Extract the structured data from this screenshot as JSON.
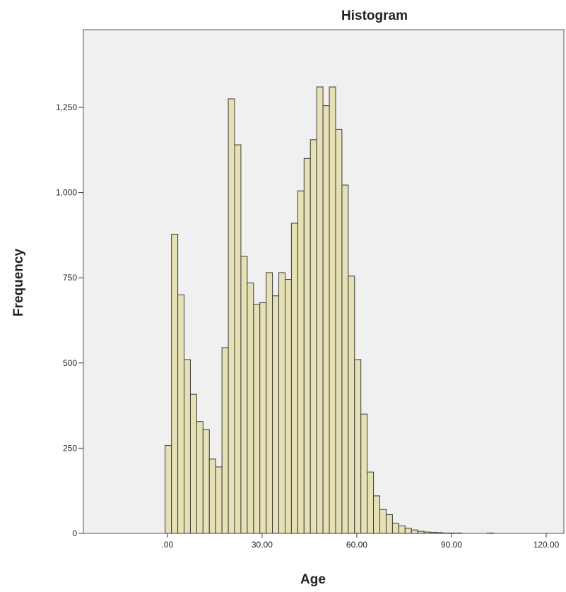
{
  "chart_data": {
    "type": "histogram",
    "title": "Histogram",
    "x_label": "Age",
    "y_label": "Frequency",
    "bins": [
      -0.7,
      1.3,
      3.3,
      5.3,
      7.3,
      9.3,
      11.3,
      13.3,
      15.3,
      17.3,
      19.3,
      21.3,
      23.3,
      25.3,
      27.3,
      29.3,
      31.3,
      33.3,
      35.3,
      37.3,
      39.3,
      41.3,
      43.3,
      45.3,
      47.3,
      49.3,
      51.3,
      53.3,
      55.3,
      57.3,
      59.3,
      61.3,
      63.3,
      65.3,
      67.3,
      69.3,
      71.3,
      73.3,
      75.3,
      77.3,
      79.3,
      81.3,
      83.3,
      85.3,
      87.3,
      89.3,
      91.3,
      93.3,
      95.3,
      97.3,
      99.3,
      101.3,
      103.3
    ],
    "counts": [
      258,
      878,
      700,
      510,
      408,
      328,
      305,
      218,
      195,
      545,
      1275,
      1140,
      813,
      735,
      672,
      677,
      765,
      697,
      765,
      745,
      910,
      1005,
      1100,
      1155,
      1310,
      1255,
      1310,
      1185,
      1022,
      755,
      510,
      350,
      180,
      110,
      70,
      55,
      30,
      22,
      15,
      10,
      6,
      4,
      3,
      2,
      1,
      1,
      1,
      0,
      0,
      0,
      0,
      1
    ],
    "color": "#e6e1b4",
    "edge_color": "#3a3a3a",
    "background": "#f0f0f0",
    "xlim": [
      -26.6,
      125.6
    ],
    "ylim": [
      0,
      1478
    ],
    "xticks": [
      {
        "value": 0,
        "label": ".00"
      },
      {
        "value": 30,
        "label": "30.00"
      },
      {
        "value": 60,
        "label": "60.00"
      },
      {
        "value": 90,
        "label": "90.00"
      },
      {
        "value": 120,
        "label": "120.00"
      }
    ],
    "yticks": [
      0,
      250,
      500,
      750,
      {
        "value": 1000,
        "label": "1,000"
      },
      {
        "value": 1250,
        "label": "1,250"
      }
    ]
  }
}
